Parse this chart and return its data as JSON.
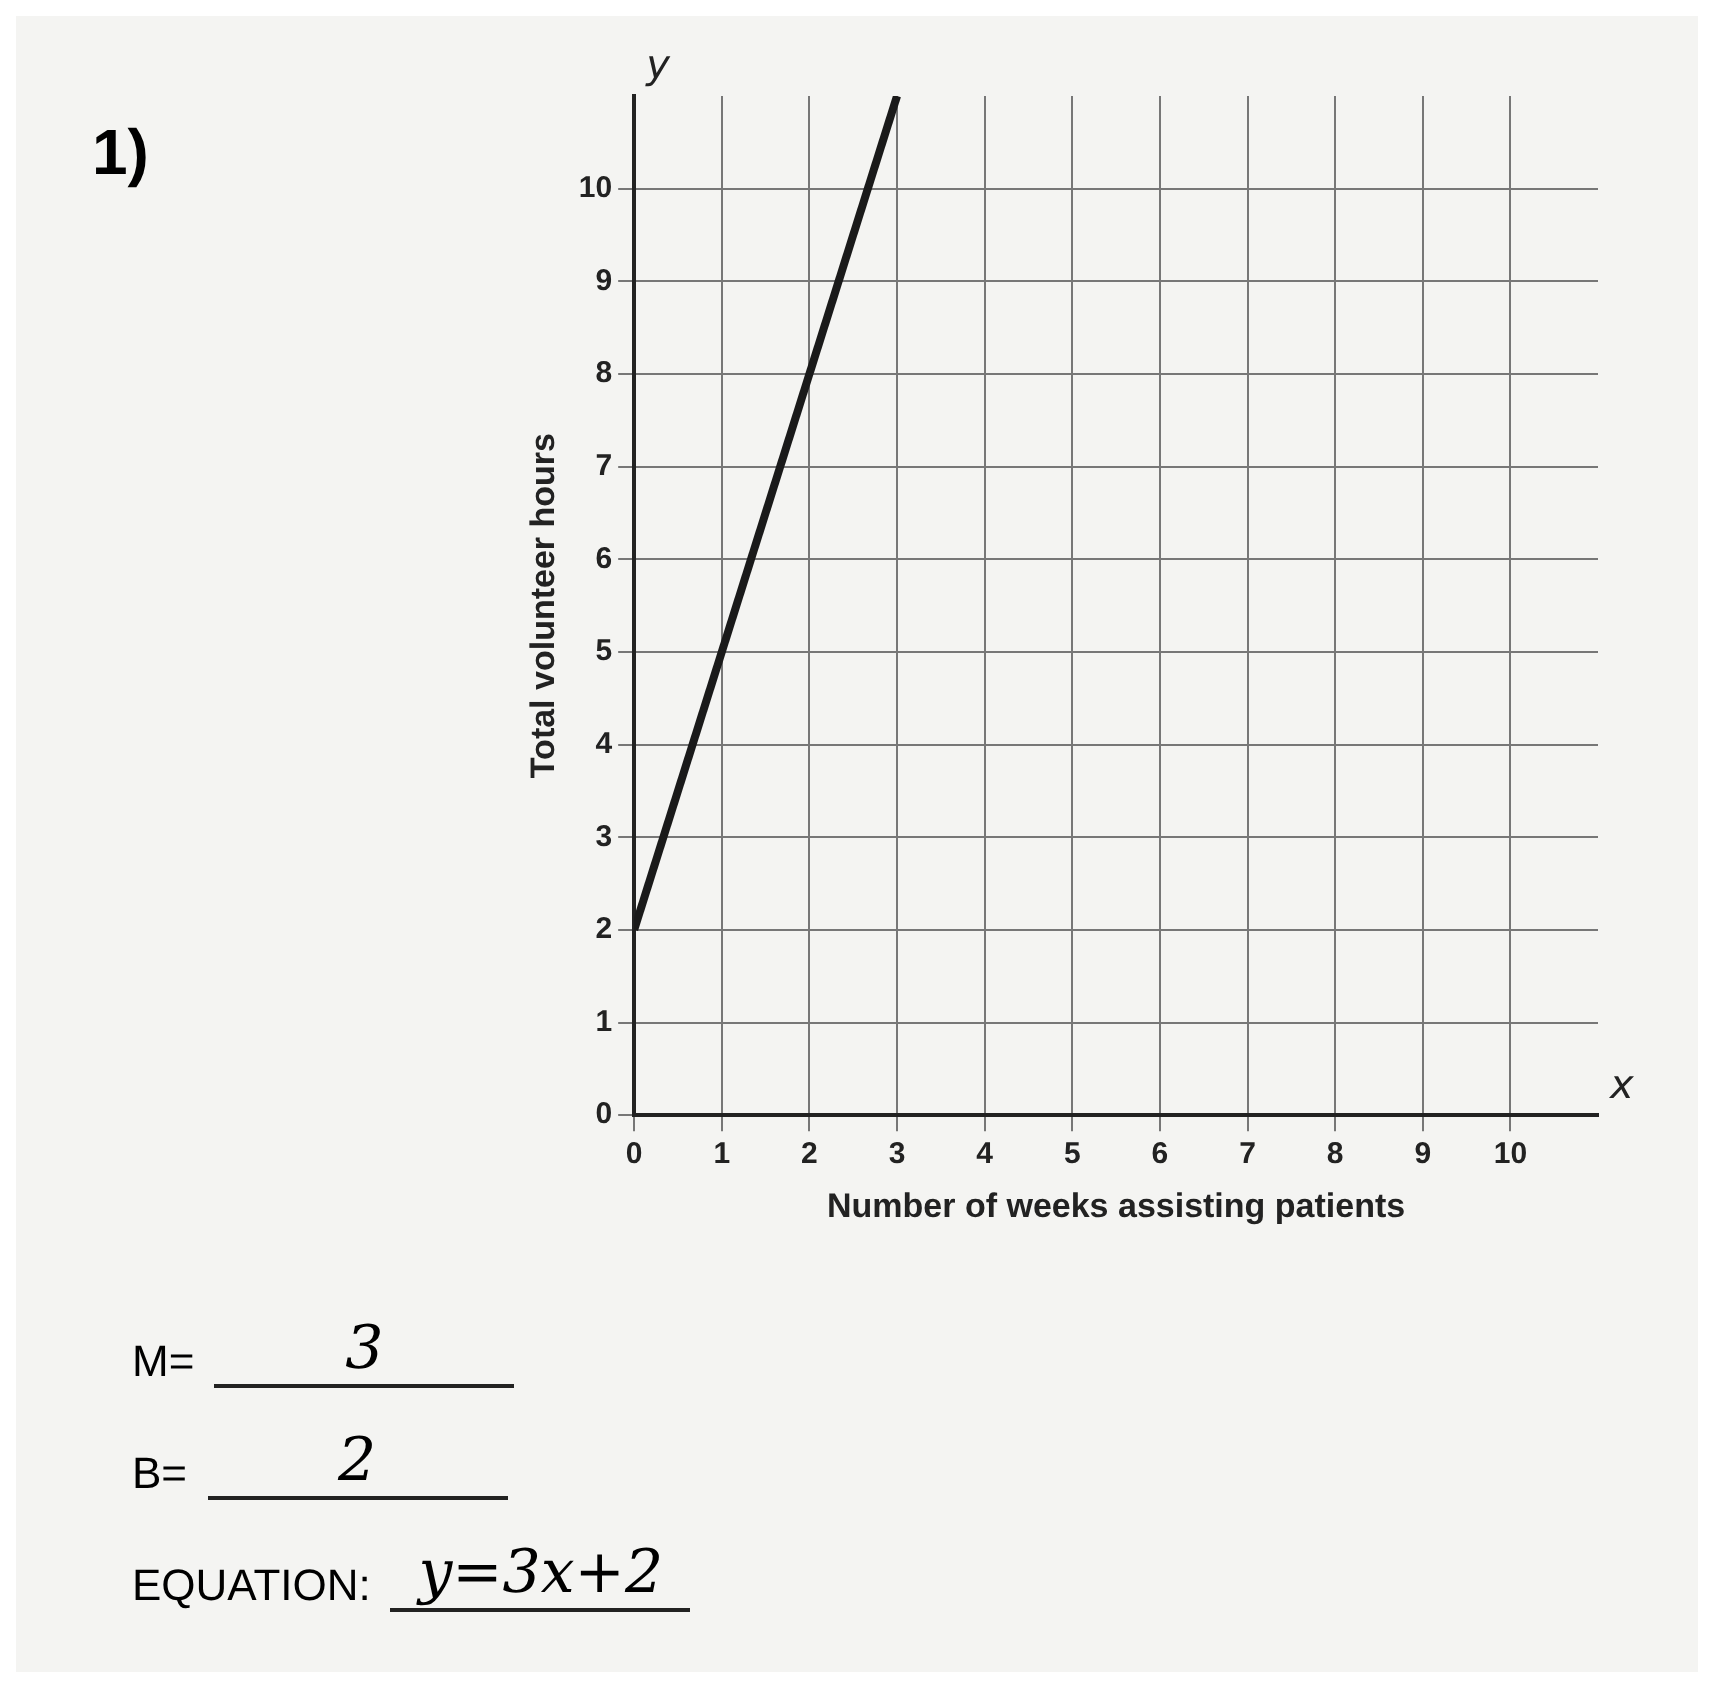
{
  "chart_data": {
    "type": "line",
    "xlabel": "Number of weeks assisting patients",
    "ylabel": "Total volunteer hours",
    "x": [
      0,
      3
    ],
    "series": [
      {
        "color": "#1a1a1a",
        "values": [
          2,
          11
        ]
      }
    ],
    "xlim": [
      0,
      11
    ],
    "ylim": [
      0,
      11
    ],
    "xticks": [
      0,
      1,
      2,
      3,
      4,
      5,
      6,
      7,
      8,
      9,
      10
    ],
    "yticks": [
      0,
      1,
      2,
      3,
      4,
      5,
      6,
      7,
      8,
      9,
      10
    ],
    "grid": true,
    "legend": false,
    "marker": "none",
    "line_style": "solid",
    "annotations": [
      "1)",
      "x",
      "y",
      "M=",
      "3",
      "B=",
      "2",
      "EQUATION:",
      "y=3x+2"
    ]
  }
}
